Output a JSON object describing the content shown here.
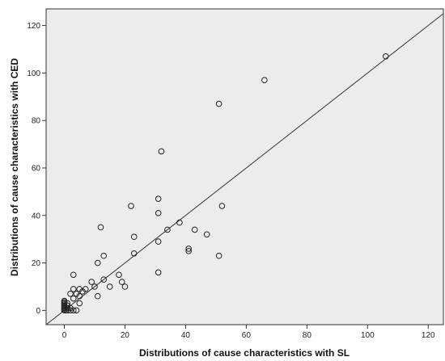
{
  "chart_data": {
    "type": "scatter",
    "title": "",
    "xlabel": "Distributions of cause characteristics with SL",
    "ylabel": "Distributions of cause characteristics with CED",
    "xlim": [
      -6,
      125
    ],
    "ylim": [
      -6,
      127
    ],
    "xticks": [
      0,
      20,
      40,
      60,
      80,
      100,
      120
    ],
    "yticks": [
      0,
      20,
      40,
      60,
      80,
      100,
      120
    ],
    "grid": false,
    "reference_line": "y = x",
    "marker": "open-circle",
    "background_color": "#ececec",
    "points": [
      [
        0,
        0
      ],
      [
        0,
        0.5
      ],
      [
        0,
        1
      ],
      [
        0,
        1.5
      ],
      [
        0,
        2
      ],
      [
        0,
        2.5
      ],
      [
        0,
        3
      ],
      [
        0,
        3.5
      ],
      [
        0,
        4
      ],
      [
        0.5,
        0
      ],
      [
        1,
        0
      ],
      [
        1,
        1
      ],
      [
        1,
        2
      ],
      [
        1,
        3
      ],
      [
        2,
        0
      ],
      [
        2,
        1
      ],
      [
        2,
        7
      ],
      [
        3,
        0
      ],
      [
        4,
        0
      ],
      [
        3,
        5
      ],
      [
        3,
        9
      ],
      [
        4,
        7
      ],
      [
        5,
        3
      ],
      [
        5,
        6
      ],
      [
        5,
        9
      ],
      [
        6,
        8
      ],
      [
        7,
        9
      ],
      [
        3,
        15
      ],
      [
        9,
        12
      ],
      [
        10,
        10
      ],
      [
        11,
        6
      ],
      [
        11,
        20
      ],
      [
        12,
        35
      ],
      [
        13,
        13
      ],
      [
        13,
        23
      ],
      [
        15,
        10
      ],
      [
        18,
        15
      ],
      [
        19,
        12
      ],
      [
        20,
        10
      ],
      [
        22,
        44
      ],
      [
        23,
        24
      ],
      [
        23,
        31
      ],
      [
        31,
        16
      ],
      [
        31,
        29
      ],
      [
        31,
        41
      ],
      [
        31,
        47
      ],
      [
        32,
        67
      ],
      [
        34,
        34
      ],
      [
        38,
        37
      ],
      [
        41,
        25
      ],
      [
        41,
        26
      ],
      [
        43,
        34
      ],
      [
        47,
        32
      ],
      [
        51,
        23
      ],
      [
        51,
        87
      ],
      [
        52,
        44
      ],
      [
        66,
        97
      ],
      [
        106,
        107
      ]
    ]
  }
}
